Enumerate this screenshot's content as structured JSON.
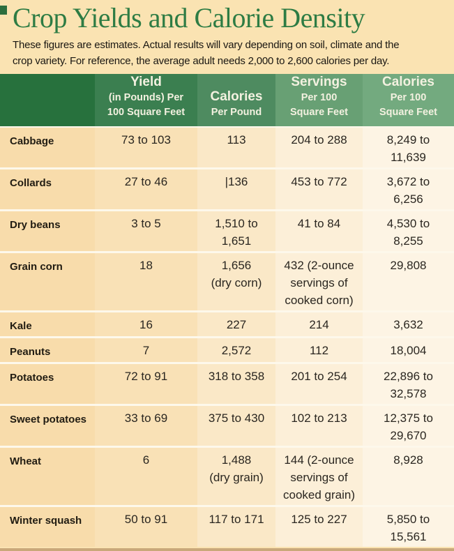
{
  "page": {
    "title": "Crop Yields and Calorie Density",
    "subtitle_line1": "These figures are estimates. Actual results will vary depending on soil, climate and the",
    "subtitle_line2": "crop variety. For reference, the average adult needs 2,000 to 2,600 calories per day."
  },
  "colors": {
    "page_background": "#fae3b2",
    "title_green": "#2e7c44",
    "header_column_greens": [
      "#27713d",
      "#3b7f50",
      "#4e8b60",
      "#68a074",
      "#73aa7f"
    ],
    "body_column_tints": [
      "#f8dcab",
      "#f9e1b6",
      "#fae8c7",
      "#fcefd8",
      "#fdf4e4"
    ],
    "row_separator": "#fdf8eb",
    "header_text": "#f3f1e0",
    "body_text": "#2a2620"
  },
  "table": {
    "columns": [
      {
        "header_main": "",
        "header_sub": ""
      },
      {
        "header_main": "Yield",
        "header_sub": "(in Pounds) Per\n100 Square Feet"
      },
      {
        "header_main": "Calories",
        "header_sub": "Per Pound"
      },
      {
        "header_main": "Servings",
        "header_sub": "Per 100\nSquare Feet"
      },
      {
        "header_main": "Calories",
        "header_sub": "Per 100\nSquare Feet"
      }
    ],
    "rows": [
      {
        "crop": "Cabbage",
        "yield": "73 to 103",
        "cal_per_pound": "113",
        "servings": "204 to 288",
        "cal_per_100": "8,249 to\n11,639"
      },
      {
        "crop": "Collards",
        "yield": "27 to 46",
        "cal_per_pound": "|136",
        "servings": "453 to 772",
        "cal_per_100": "3,672 to\n6,256"
      },
      {
        "crop": "Dry beans",
        "yield": "3 to 5",
        "cal_per_pound": "1,510 to\n1,651",
        "servings": "41 to 84",
        "cal_per_100": "4,530 to\n8,255"
      },
      {
        "crop": "Grain corn",
        "yield": "18",
        "cal_per_pound": "1,656\n(dry corn)",
        "servings": "432 (2-ounce\nservings of\ncooked corn)",
        "cal_per_100": "29,808"
      },
      {
        "crop": "Kale",
        "yield": "16",
        "cal_per_pound": "227",
        "servings": "214",
        "cal_per_100": "3,632"
      },
      {
        "crop": "Peanuts",
        "yield": "7",
        "cal_per_pound": "2,572",
        "servings": "112",
        "cal_per_100": "18,004"
      },
      {
        "crop": "Potatoes",
        "yield": "72 to 91",
        "cal_per_pound": "318 to 358",
        "servings": "201 to 254",
        "cal_per_100": "22,896 to\n32,578"
      },
      {
        "crop": "Sweet potatoes",
        "yield": "33 to 69",
        "cal_per_pound": "375 to 430",
        "servings": "102 to 213",
        "cal_per_100": "12,375 to\n29,670"
      },
      {
        "crop": "Wheat",
        "yield": "6",
        "cal_per_pound": "1,488\n(dry grain)",
        "servings": "144 (2-ounce\nservings of\ncooked grain)",
        "cal_per_100": "8,928"
      },
      {
        "crop": "Winter squash",
        "yield": "50 to 91",
        "cal_per_pound": "117 to 171",
        "servings": "125 to 227",
        "cal_per_100": "5,850 to\n15,561"
      }
    ]
  },
  "chart_data": {
    "type": "table",
    "title": "Crop Yields and Calorie Density",
    "note": "These figures are estimates. Actual results will vary depending on soil, climate and the crop variety. For reference, the average adult needs 2,000 to 2,600 calories per day.",
    "columns": [
      "Crop",
      "Yield (in Pounds) Per 100 Square Feet",
      "Calories Per Pound",
      "Servings Per 100 Square Feet",
      "Calories Per 100 Square Feet"
    ],
    "rows": [
      [
        "Cabbage",
        "73 to 103",
        "113",
        "204 to 288",
        "8,249 to 11,639"
      ],
      [
        "Collards",
        "27 to 46",
        "136",
        "453 to 772",
        "3,672 to 6,256"
      ],
      [
        "Dry beans",
        "3 to 5",
        "1,510 to 1,651",
        "41 to 84",
        "4,530 to 8,255"
      ],
      [
        "Grain corn",
        "18",
        "1,656 (dry corn)",
        "432 (2-ounce servings of cooked corn)",
        "29,808"
      ],
      [
        "Kale",
        "16",
        "227",
        "214",
        "3,632"
      ],
      [
        "Peanuts",
        "7",
        "2,572",
        "112",
        "18,004"
      ],
      [
        "Potatoes",
        "72 to 91",
        "318 to 358",
        "201 to 254",
        "22,896 to 32,578"
      ],
      [
        "Sweet potatoes",
        "33 to 69",
        "375 to 430",
        "102 to 213",
        "12,375 to 29,670"
      ],
      [
        "Wheat",
        "6",
        "1,488 (dry grain)",
        "144 (2-ounce servings of cooked grain)",
        "8,928"
      ],
      [
        "Winter squash",
        "50 to 91",
        "117 to 171",
        "125 to 227",
        "5,850 to 15,561"
      ]
    ]
  }
}
